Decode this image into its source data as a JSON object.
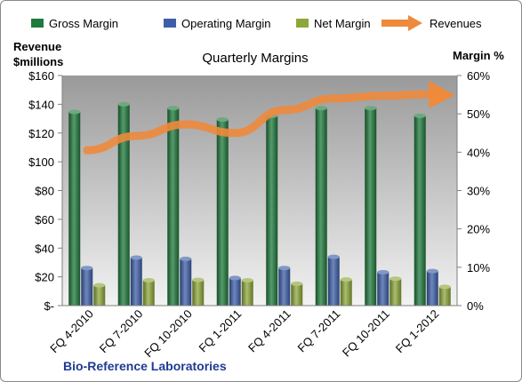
{
  "chart_data": {
    "type": "bar",
    "title": "Quarterly Margins",
    "ylabel_left": [
      "Revenue",
      "$millions"
    ],
    "ylabel_right": "Margin %",
    "footer": "Bio-Reference Laboratories",
    "categories": [
      "FQ 4-2010",
      "FQ 7-2010",
      "FQ 10-2010",
      "FQ 1-2011",
      "FQ 4-2011",
      "FQ 7-2011",
      "FQ 10-2011",
      "FQ 1-2012"
    ],
    "y_left": {
      "min": 0,
      "max": 160,
      "step": 20,
      "tick_labels": [
        "$-",
        "$20",
        "$40",
        "$60",
        "$80",
        "$100",
        "$120",
        "$140",
        "$160"
      ]
    },
    "y_right": {
      "min": 0,
      "max": 0.6,
      "tick_labels": [
        "0%",
        "10%",
        "20%",
        "30%",
        "40%",
        "50%",
        "60%"
      ]
    },
    "series": [
      {
        "name": "Gross Margin",
        "axis": "right",
        "color": "#1f7a3c",
        "values": [
          0.505,
          0.525,
          0.515,
          0.485,
          0.495,
          0.515,
          0.515,
          0.495
        ]
      },
      {
        "name": "Operating Margin",
        "axis": "right",
        "color": "#3d5fa8",
        "values": [
          0.098,
          0.125,
          0.122,
          0.072,
          0.098,
          0.127,
          0.087,
          0.09
        ]
      },
      {
        "name": "Net Margin",
        "axis": "right",
        "color": "#8da83a",
        "values": [
          0.053,
          0.066,
          0.067,
          0.066,
          0.057,
          0.068,
          0.07,
          0.049
        ]
      },
      {
        "name": "Revenues",
        "axis": "left",
        "type": "arrow-line",
        "color": "#ee8a3c",
        "values": [
          108,
          118,
          126,
          120,
          136,
          144,
          146,
          147
        ]
      }
    ],
    "legend_position": "top",
    "grid": false
  }
}
